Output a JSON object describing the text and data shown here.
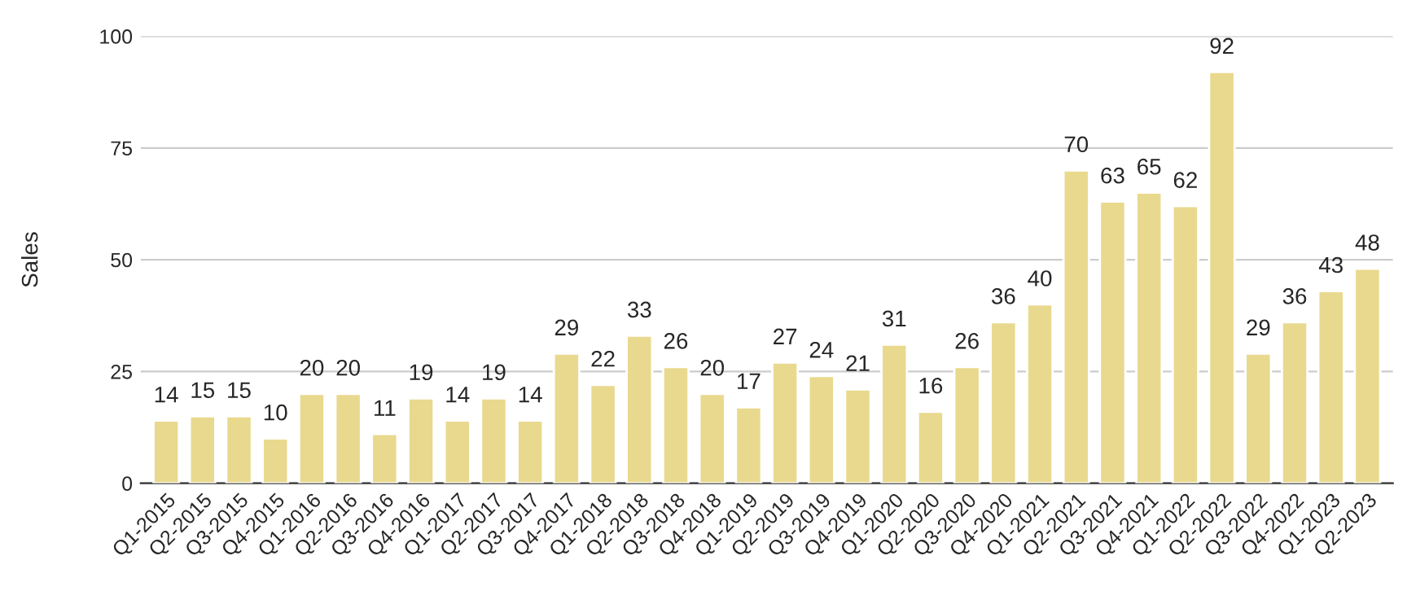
{
  "chart_data": {
    "type": "bar",
    "ylabel": "Sales",
    "categories": [
      "Q1-2015",
      "Q2-2015",
      "Q3-2015",
      "Q4-2015",
      "Q1-2016",
      "Q2-2016",
      "Q3-2016",
      "Q4-2016",
      "Q1-2017",
      "Q2-2017",
      "Q3-2017",
      "Q4-2017",
      "Q1-2018",
      "Q2-2018",
      "Q3-2018",
      "Q4-2018",
      "Q1-2019",
      "Q2-2019",
      "Q3-2019",
      "Q4-2019",
      "Q1-2020",
      "Q2-2020",
      "Q3-2020",
      "Q4-2020",
      "Q1-2021",
      "Q2-2021",
      "Q3-2021",
      "Q4-2021",
      "Q1-2022",
      "Q2-2022",
      "Q3-2022",
      "Q4-2022",
      "Q1-2023",
      "Q2-2023"
    ],
    "values": [
      14,
      15,
      15,
      10,
      20,
      20,
      11,
      19,
      14,
      19,
      14,
      29,
      22,
      33,
      26,
      20,
      17,
      27,
      24,
      21,
      31,
      16,
      26,
      36,
      40,
      70,
      63,
      65,
      62,
      92,
      29,
      36,
      43,
      48
    ],
    "color": "#e9d98e",
    "ylim": [
      0,
      100
    ],
    "yticks": [
      0,
      25,
      50,
      75,
      100
    ],
    "grid": "y",
    "data_labels": true
  }
}
